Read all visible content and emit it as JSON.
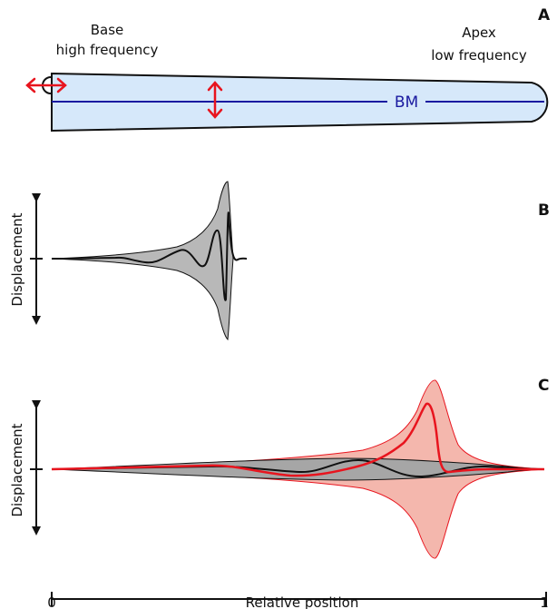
{
  "panels": {
    "a": "A",
    "b": "B",
    "c": "C"
  },
  "cochlea": {
    "base_label": "Base",
    "base_sublabel": "high frequency",
    "apex_label": "Apex",
    "apex_sublabel": "low frequency",
    "membrane_label": "BM"
  },
  "axes": {
    "ylabel": "Displacement",
    "xlabel": "Relative position",
    "x_start": "0",
    "x_end": "1"
  },
  "colors": {
    "membrane_fill": "#d6e8fa",
    "membrane_line": "#1a1aa0",
    "stimulus_arrow": "#e8141e",
    "envelope_gray": "#b8b8b8",
    "envelope_red": "#f4b7ad",
    "wave_red": "#e8141e"
  }
}
